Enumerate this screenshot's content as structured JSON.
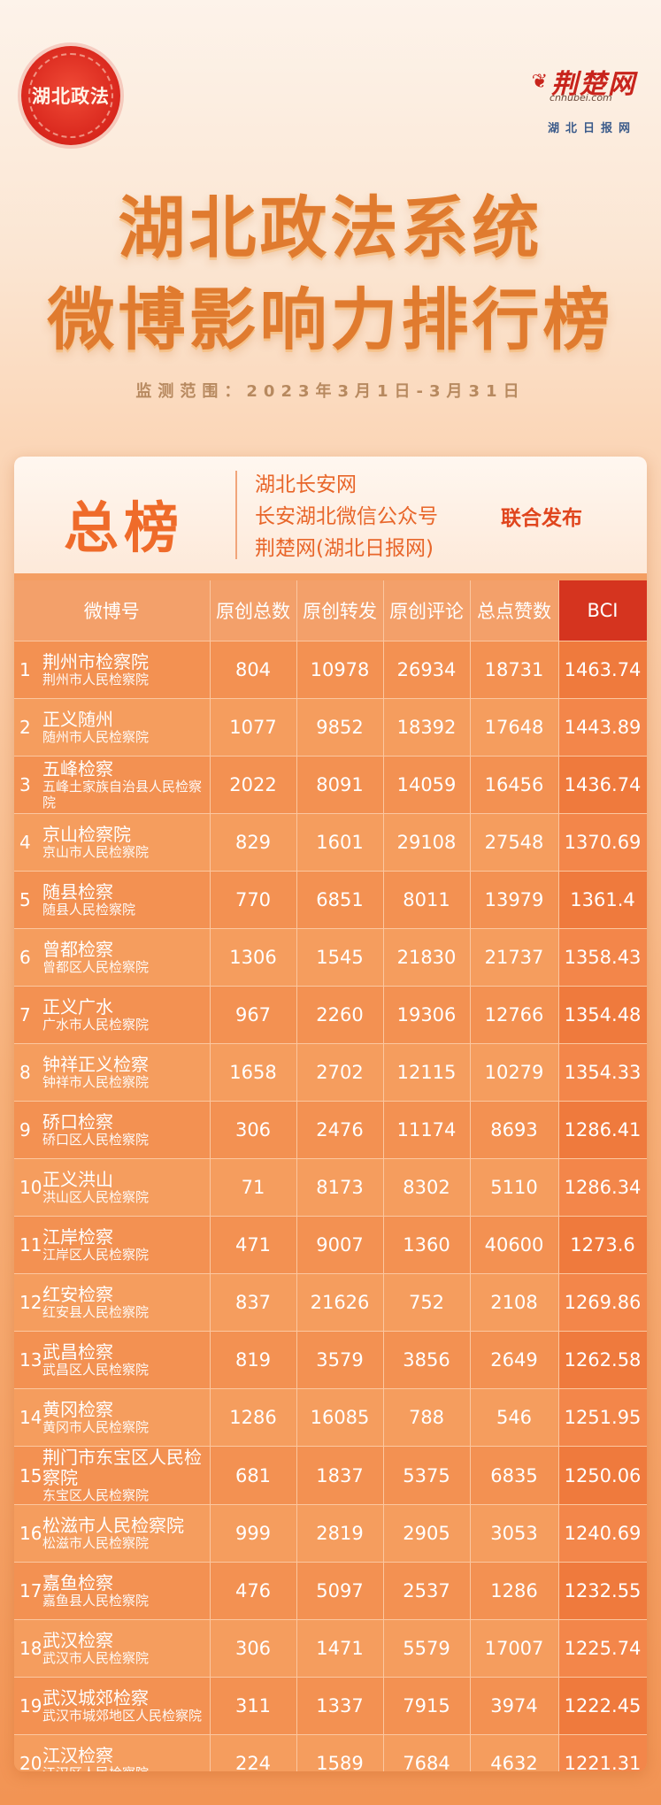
{
  "seal_text": "湖北政法",
  "brand": {
    "logo": "荆楚网",
    "domain": "cnhubei.com",
    "sub": "湖北日报网"
  },
  "title_line1": "湖北政法系统",
  "title_line2": "微博影响力排行榜",
  "period": "监测范围：2023年3月1日-3月31日",
  "panel": {
    "heading": "总榜",
    "publishers": [
      "湖北长安网",
      "长安湖北微信公众号",
      "荆楚网(湖北日报网)"
    ],
    "joint_label": "联合发布"
  },
  "table": {
    "headers": [
      "微博号",
      "原创总数",
      "原创转发",
      "原创评论",
      "总点赞数",
      "BCI"
    ],
    "rows": [
      {
        "rank": "1",
        "name": "荆州市检察院",
        "org": "荆州市人民检察院",
        "total": "804",
        "repost": "10978",
        "comment": "26934",
        "likes": "18731",
        "bci": "1463.74"
      },
      {
        "rank": "2",
        "name": "正义随州",
        "org": "随州市人民检察院",
        "total": "1077",
        "repost": "9852",
        "comment": "18392",
        "likes": "17648",
        "bci": "1443.89"
      },
      {
        "rank": "3",
        "name": "五峰检察",
        "org": "五峰土家族自治县人民检察院",
        "total": "2022",
        "repost": "8091",
        "comment": "14059",
        "likes": "16456",
        "bci": "1436.74"
      },
      {
        "rank": "4",
        "name": "京山检察院",
        "org": "京山市人民检察院",
        "total": "829",
        "repost": "1601",
        "comment": "29108",
        "likes": "27548",
        "bci": "1370.69"
      },
      {
        "rank": "5",
        "name": "随县检察",
        "org": "随县人民检察院",
        "total": "770",
        "repost": "6851",
        "comment": "8011",
        "likes": "13979",
        "bci": "1361.4"
      },
      {
        "rank": "6",
        "name": "曾都检察",
        "org": "曾都区人民检察院",
        "total": "1306",
        "repost": "1545",
        "comment": "21830",
        "likes": "21737",
        "bci": "1358.43"
      },
      {
        "rank": "7",
        "name": "正义广水",
        "org": "广水市人民检察院",
        "total": "967",
        "repost": "2260",
        "comment": "19306",
        "likes": "12766",
        "bci": "1354.48"
      },
      {
        "rank": "8",
        "name": "钟祥正义检察",
        "org": "钟祥市人民检察院",
        "total": "1658",
        "repost": "2702",
        "comment": "12115",
        "likes": "10279",
        "bci": "1354.33"
      },
      {
        "rank": "9",
        "name": "硚口检察",
        "org": "硚口区人民检察院",
        "total": "306",
        "repost": "2476",
        "comment": "11174",
        "likes": "8693",
        "bci": "1286.41"
      },
      {
        "rank": "10",
        "name": "正义洪山",
        "org": "洪山区人民检察院",
        "total": "71",
        "repost": "8173",
        "comment": "8302",
        "likes": "5110",
        "bci": "1286.34"
      },
      {
        "rank": "11",
        "name": "江岸检察",
        "org": "江岸区人民检察院",
        "total": "471",
        "repost": "9007",
        "comment": "1360",
        "likes": "40600",
        "bci": "1273.6"
      },
      {
        "rank": "12",
        "name": "红安检察",
        "org": "红安县人民检察院",
        "total": "837",
        "repost": "21626",
        "comment": "752",
        "likes": "2108",
        "bci": "1269.86"
      },
      {
        "rank": "13",
        "name": "武昌检察",
        "org": "武昌区人民检察院",
        "total": "819",
        "repost": "3579",
        "comment": "3856",
        "likes": "2649",
        "bci": "1262.58"
      },
      {
        "rank": "14",
        "name": "黄冈检察",
        "org": "黄冈市人民检察院",
        "total": "1286",
        "repost": "16085",
        "comment": "788",
        "likes": "546",
        "bci": "1251.95"
      },
      {
        "rank": "15",
        "name": "荆门市东宝区人民检察院",
        "org": "东宝区人民检察院",
        "total": "681",
        "repost": "1837",
        "comment": "5375",
        "likes": "6835",
        "bci": "1250.06"
      },
      {
        "rank": "16",
        "name": "松滋市人民检察院",
        "org": "松滋市人民检察院",
        "total": "999",
        "repost": "2819",
        "comment": "2905",
        "likes": "3053",
        "bci": "1240.69"
      },
      {
        "rank": "17",
        "name": "嘉鱼检察",
        "org": "嘉鱼县人民检察院",
        "total": "476",
        "repost": "5097",
        "comment": "2537",
        "likes": "1286",
        "bci": "1232.55"
      },
      {
        "rank": "18",
        "name": "武汉检察",
        "org": "武汉市人民检察院",
        "total": "306",
        "repost": "1471",
        "comment": "5579",
        "likes": "17007",
        "bci": "1225.74"
      },
      {
        "rank": "19",
        "name": "武汉城郊检察",
        "org": "武汉市城郊地区人民检察院",
        "total": "311",
        "repost": "1337",
        "comment": "7915",
        "likes": "3974",
        "bci": "1222.45"
      },
      {
        "rank": "20",
        "name": "江汉检察",
        "org": "江汉区人民检察院",
        "total": "224",
        "repost": "1589",
        "comment": "7684",
        "likes": "4632",
        "bci": "1221.31"
      }
    ]
  }
}
